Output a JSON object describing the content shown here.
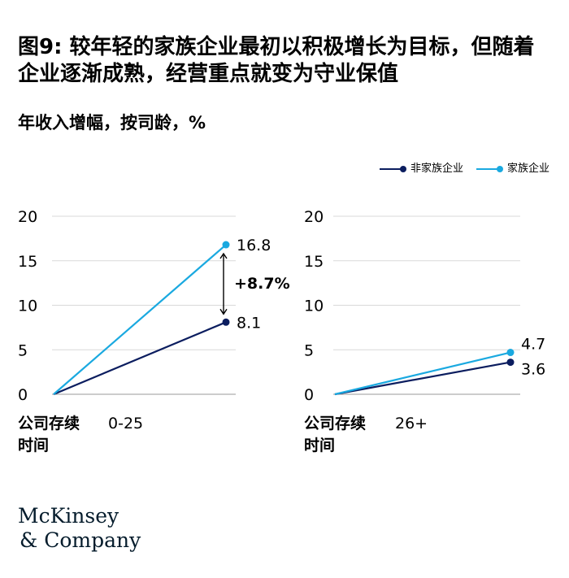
{
  "title": "图9: 较年轻的家族企业最初以积极增长为目标，但随着企业逐渐成熟，经营重点就变为守业保值",
  "subtitle": "年收入增幅，按司龄，%",
  "legend": {
    "non_family": "非家族企业",
    "family": "家族企业"
  },
  "brand": {
    "line1": "McKinsey",
    "line2": "& Company"
  },
  "colors": {
    "non_family": "#0b1d5f",
    "family": "#1aa9e0",
    "grid": "#d9d9d9"
  },
  "chart_data": [
    {
      "type": "line",
      "xlabel": "公司存续时间",
      "category": "0-25",
      "ylim": [
        0,
        20
      ],
      "yticks": [
        "0",
        "5",
        "10",
        "15",
        "20"
      ],
      "x": [
        0,
        1
      ],
      "series": [
        {
          "name": "非家族企业",
          "values": [
            0,
            8.1
          ],
          "end_label": "8.1"
        },
        {
          "name": "家族企业",
          "values": [
            0,
            16.8
          ],
          "end_label": "16.8"
        }
      ],
      "annotation": "+8.7%"
    },
    {
      "type": "line",
      "xlabel": "公司存续时间",
      "category": "26+",
      "ylim": [
        0,
        20
      ],
      "yticks": [
        "0",
        "5",
        "10",
        "15",
        "20"
      ],
      "x": [
        0,
        1
      ],
      "series": [
        {
          "name": "非家族企业",
          "values": [
            0,
            3.6
          ],
          "end_label": "3.6"
        },
        {
          "name": "家族企业",
          "values": [
            0,
            4.7
          ],
          "end_label": "4.7"
        }
      ]
    }
  ]
}
